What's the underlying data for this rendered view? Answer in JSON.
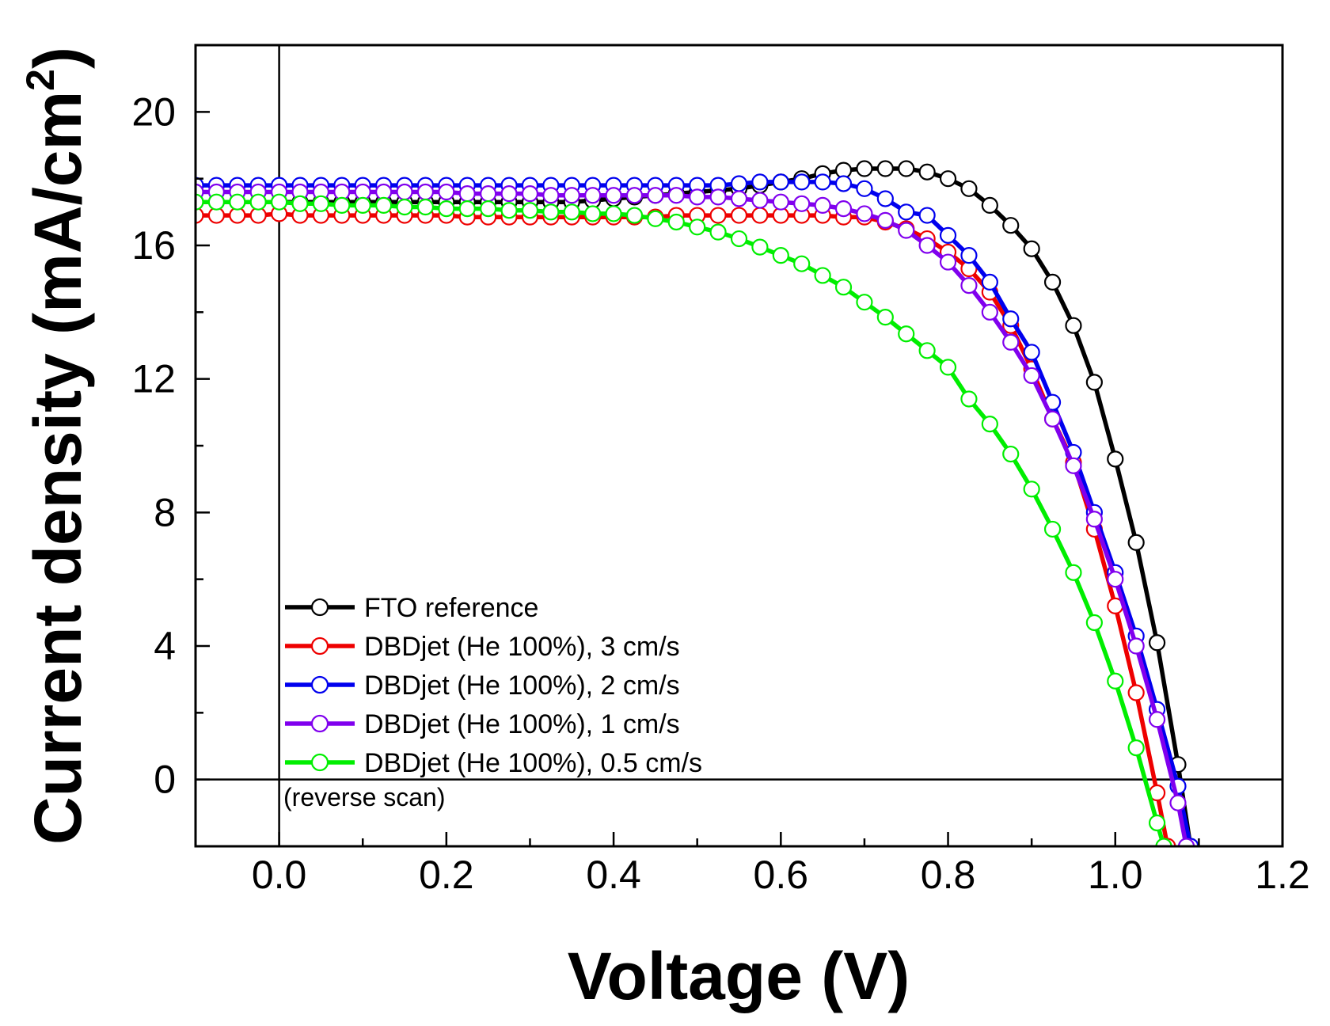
{
  "chart_data": {
    "type": "line",
    "title": "",
    "xlabel": "Voltage (V)",
    "ylabel_main": "Current density (mA/cm",
    "ylabel_sup": "2",
    "ylabel_close": ")",
    "xlim": [
      -0.1,
      1.2
    ],
    "ylim": [
      -2,
      22
    ],
    "xticks": [
      0.0,
      0.2,
      0.4,
      0.6,
      0.8,
      1.0,
      1.2
    ],
    "xtick_labels": [
      "0.0",
      "0.2",
      "0.4",
      "0.6",
      "0.8",
      "1.0",
      "1.2"
    ],
    "yticks": [
      0,
      4,
      8,
      12,
      16,
      20
    ],
    "ytick_labels": [
      "0",
      "4",
      "8",
      "12",
      "16",
      "20"
    ],
    "annotation": "(reverse scan)",
    "legend_position": "bottom-left",
    "series": [
      {
        "name": "FTO reference",
        "color": "#000000",
        "x": [
          -0.1,
          -0.075,
          -0.05,
          -0.025,
          0.0,
          0.025,
          0.05,
          0.075,
          0.1,
          0.125,
          0.15,
          0.175,
          0.2,
          0.225,
          0.25,
          0.275,
          0.3,
          0.325,
          0.35,
          0.375,
          0.4,
          0.425,
          0.45,
          0.475,
          0.5,
          0.525,
          0.55,
          0.575,
          0.6,
          0.625,
          0.65,
          0.675,
          0.7,
          0.725,
          0.75,
          0.775,
          0.8,
          0.825,
          0.85,
          0.875,
          0.9,
          0.925,
          0.95,
          0.975,
          1.0,
          1.025,
          1.05,
          1.075,
          1.09
        ],
        "y": [
          17.3,
          17.3,
          17.3,
          17.3,
          17.3,
          17.3,
          17.3,
          17.3,
          17.3,
          17.3,
          17.3,
          17.3,
          17.3,
          17.3,
          17.3,
          17.3,
          17.3,
          17.3,
          17.3,
          17.35,
          17.4,
          17.45,
          17.5,
          17.55,
          17.6,
          17.65,
          17.7,
          17.8,
          17.9,
          18.0,
          18.15,
          18.25,
          18.3,
          18.3,
          18.3,
          18.2,
          18.0,
          17.7,
          17.2,
          16.6,
          15.9,
          14.9,
          13.6,
          11.9,
          9.6,
          7.1,
          4.1,
          0.45,
          -2.0
        ]
      },
      {
        "name": "DBDjet (He 100%), 3 cm/s",
        "color": "#ee0000",
        "x": [
          -0.1,
          -0.075,
          -0.05,
          -0.025,
          0.0,
          0.025,
          0.05,
          0.075,
          0.1,
          0.125,
          0.15,
          0.175,
          0.2,
          0.225,
          0.25,
          0.275,
          0.3,
          0.325,
          0.35,
          0.375,
          0.4,
          0.425,
          0.45,
          0.475,
          0.5,
          0.525,
          0.55,
          0.575,
          0.6,
          0.625,
          0.65,
          0.675,
          0.7,
          0.725,
          0.75,
          0.775,
          0.8,
          0.825,
          0.85,
          0.875,
          0.9,
          0.925,
          0.95,
          0.975,
          1.0,
          1.025,
          1.05,
          1.0625
        ],
        "y": [
          16.9,
          16.9,
          16.9,
          16.9,
          16.95,
          16.9,
          16.9,
          16.9,
          16.9,
          16.9,
          16.9,
          16.9,
          16.9,
          16.85,
          16.85,
          16.85,
          16.85,
          16.85,
          16.85,
          16.85,
          16.85,
          16.85,
          16.85,
          16.9,
          16.9,
          16.9,
          16.9,
          16.9,
          16.9,
          16.9,
          16.9,
          16.85,
          16.85,
          16.7,
          16.5,
          16.2,
          15.8,
          15.3,
          14.6,
          13.6,
          12.3,
          10.8,
          9.5,
          7.5,
          5.2,
          2.6,
          -0.4,
          -2.0
        ]
      },
      {
        "name": "DBDjet (He 100%), 2 cm/s",
        "color": "#0000ee",
        "x": [
          -0.1,
          -0.075,
          -0.05,
          -0.025,
          0.0,
          0.025,
          0.05,
          0.075,
          0.1,
          0.125,
          0.15,
          0.175,
          0.2,
          0.225,
          0.25,
          0.275,
          0.3,
          0.325,
          0.35,
          0.375,
          0.4,
          0.425,
          0.45,
          0.475,
          0.5,
          0.525,
          0.55,
          0.575,
          0.6,
          0.625,
          0.65,
          0.675,
          0.7,
          0.725,
          0.75,
          0.775,
          0.8,
          0.825,
          0.85,
          0.875,
          0.9,
          0.925,
          0.95,
          0.975,
          1.0,
          1.025,
          1.05,
          1.075,
          1.09
        ],
        "y": [
          17.8,
          17.8,
          17.8,
          17.8,
          17.8,
          17.8,
          17.8,
          17.8,
          17.8,
          17.8,
          17.8,
          17.8,
          17.8,
          17.8,
          17.8,
          17.8,
          17.8,
          17.8,
          17.8,
          17.8,
          17.8,
          17.8,
          17.8,
          17.8,
          17.8,
          17.8,
          17.85,
          17.9,
          17.9,
          17.9,
          17.9,
          17.85,
          17.7,
          17.4,
          17.0,
          16.9,
          16.3,
          15.7,
          14.9,
          13.8,
          12.8,
          11.3,
          9.8,
          8.0,
          6.2,
          4.3,
          2.1,
          -0.2,
          -2.0
        ]
      },
      {
        "name": "DBDjet (He 100%), 1 cm/s",
        "color": "#8000ee",
        "x": [
          -0.1,
          -0.075,
          -0.05,
          -0.025,
          0.0,
          0.025,
          0.05,
          0.075,
          0.1,
          0.125,
          0.15,
          0.175,
          0.2,
          0.225,
          0.25,
          0.275,
          0.3,
          0.325,
          0.35,
          0.375,
          0.4,
          0.425,
          0.45,
          0.475,
          0.5,
          0.525,
          0.55,
          0.575,
          0.6,
          0.625,
          0.65,
          0.675,
          0.7,
          0.725,
          0.75,
          0.775,
          0.8,
          0.825,
          0.85,
          0.875,
          0.9,
          0.925,
          0.95,
          0.975,
          1.0,
          1.025,
          1.05,
          1.075,
          1.085
        ],
        "y": [
          17.6,
          17.6,
          17.6,
          17.6,
          17.6,
          17.6,
          17.6,
          17.6,
          17.6,
          17.6,
          17.6,
          17.6,
          17.6,
          17.55,
          17.55,
          17.55,
          17.55,
          17.5,
          17.5,
          17.5,
          17.5,
          17.5,
          17.5,
          17.5,
          17.45,
          17.45,
          17.4,
          17.35,
          17.3,
          17.25,
          17.2,
          17.1,
          16.95,
          16.75,
          16.45,
          16.0,
          15.5,
          14.8,
          14.0,
          13.1,
          12.1,
          10.8,
          9.4,
          7.8,
          6.0,
          4.0,
          1.8,
          -0.7,
          -2.0
        ]
      },
      {
        "name": "DBDjet (He 100%), 0.5 cm/s",
        "color": "#00ee00",
        "x": [
          -0.1,
          -0.075,
          -0.05,
          -0.025,
          0.0,
          0.025,
          0.05,
          0.075,
          0.1,
          0.125,
          0.15,
          0.175,
          0.2,
          0.225,
          0.25,
          0.275,
          0.3,
          0.325,
          0.35,
          0.375,
          0.4,
          0.425,
          0.45,
          0.475,
          0.5,
          0.525,
          0.55,
          0.575,
          0.6,
          0.625,
          0.65,
          0.675,
          0.7,
          0.725,
          0.75,
          0.775,
          0.8,
          0.825,
          0.85,
          0.875,
          0.9,
          0.925,
          0.95,
          0.975,
          1.0,
          1.025,
          1.05,
          1.058
        ],
        "y": [
          17.3,
          17.3,
          17.3,
          17.3,
          17.3,
          17.25,
          17.25,
          17.2,
          17.2,
          17.2,
          17.15,
          17.15,
          17.1,
          17.1,
          17.1,
          17.05,
          17.05,
          17.0,
          17.0,
          16.95,
          16.95,
          16.9,
          16.8,
          16.7,
          16.55,
          16.4,
          16.2,
          15.95,
          15.7,
          15.45,
          15.1,
          14.75,
          14.3,
          13.85,
          13.35,
          12.85,
          12.35,
          11.4,
          10.65,
          9.75,
          8.7,
          7.5,
          6.2,
          4.7,
          2.95,
          0.95,
          -1.3,
          -2.0
        ]
      }
    ]
  }
}
